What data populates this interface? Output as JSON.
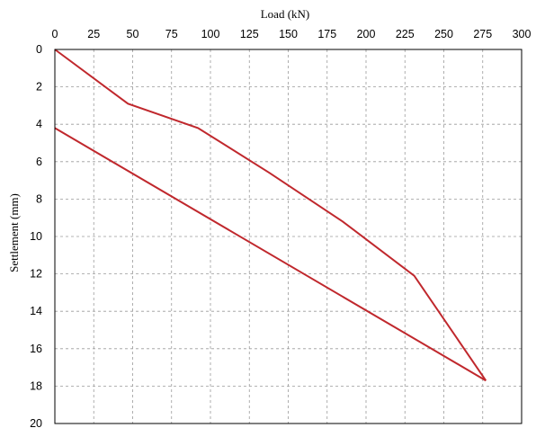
{
  "chart_data": {
    "type": "line",
    "xlabel": "Load (kN)",
    "ylabel": "Settlement (mm)",
    "x_axis_position": "top",
    "y_axis_inverted": true,
    "xlim": [
      0,
      300
    ],
    "ylim": [
      0,
      20
    ],
    "x_ticks": [
      0,
      25,
      50,
      75,
      100,
      125,
      150,
      175,
      200,
      225,
      250,
      275,
      300
    ],
    "y_ticks": [
      0,
      2,
      4,
      6,
      8,
      10,
      12,
      14,
      16,
      18,
      20
    ],
    "grid": true,
    "line_color": "#c0282d",
    "series": [
      {
        "x": [
          0,
          47,
          92,
          138,
          185,
          231,
          277,
          0
        ],
        "y": [
          0,
          2.9,
          4.2,
          6.6,
          9.2,
          12.1,
          17.7,
          4.2
        ]
      }
    ]
  }
}
